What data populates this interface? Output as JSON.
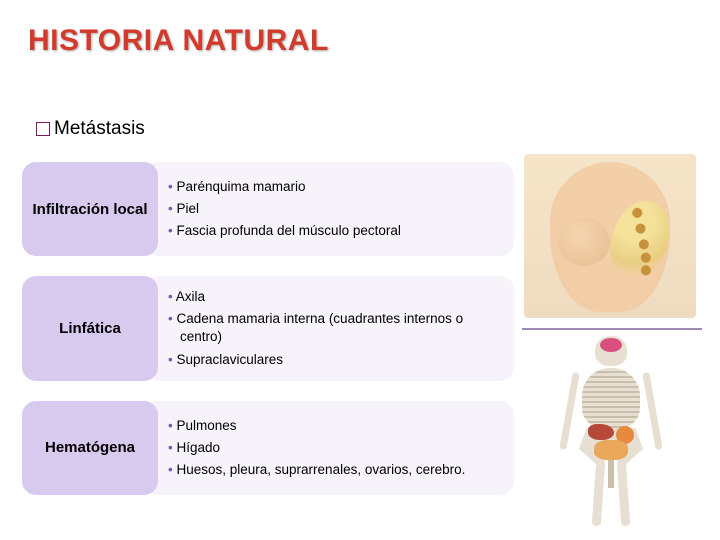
{
  "title": "HISTORIA NATURAL",
  "subtitle": "Metástasis",
  "colors": {
    "title_color": "#d43a2c",
    "bullet_border": "#7a1c63",
    "category_bg": "#d8c9ee",
    "items_bg": "#f7f3fb",
    "item_bullet": "#7a58a8",
    "background": "#ffffff"
  },
  "rows": [
    {
      "category": "Infiltración local",
      "items": [
        "Parénquima mamario",
        "Piel",
        "Fascia profunda del músculo pectoral"
      ]
    },
    {
      "category": "Linfática",
      "items": [
        "Axila",
        "Cadena mamaria interna (cuadrantes internos o centro)",
        "Supraclaviculares"
      ]
    },
    {
      "category": "Hematógena",
      "items": [
        "Pulmones",
        "Hígado",
        "Huesos, pleura, suprarrenales, ovarios, cerebro."
      ]
    }
  ],
  "typography": {
    "title_fontsize": 30,
    "subtitle_fontsize": 19,
    "category_fontsize": 15,
    "item_fontsize": 13.5
  },
  "images": {
    "top": "breast-lymph-anatomy",
    "bottom": "skeleton-organs-anatomy"
  }
}
